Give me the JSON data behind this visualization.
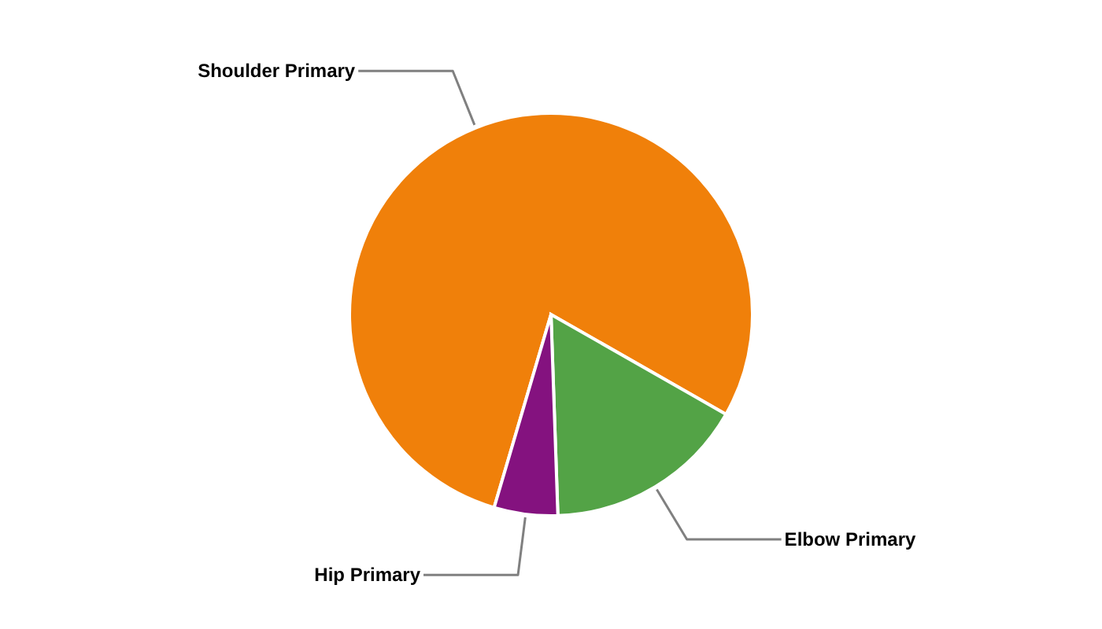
{
  "chart_data": {
    "type": "pie",
    "categories": [
      "Shoulder Primary",
      "Elbow Primary",
      "Hip Primary"
    ],
    "values": [
      78.7,
      16.2,
      5.1
    ],
    "colors": [
      "#f0800a",
      "#53a346",
      "#84127f"
    ]
  }
}
